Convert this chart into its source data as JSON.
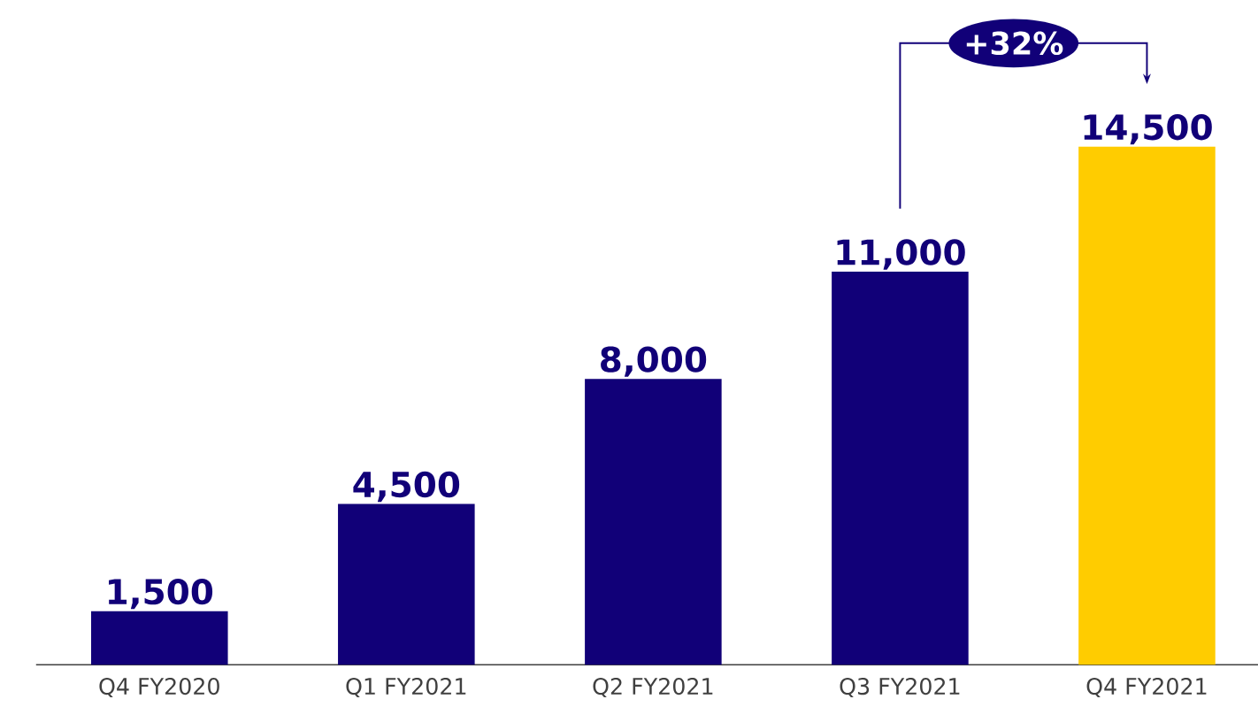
{
  "chart_data": {
    "type": "bar",
    "categories": [
      "Q4 FY2020",
      "Q1 FY2021",
      "Q2 FY2021",
      "Q3 FY2021",
      "Q4 FY2021"
    ],
    "values": [
      1500,
      4500,
      8000,
      11000,
      14500
    ],
    "value_labels": [
      "1,500",
      "4,500",
      "8,000",
      "11,000",
      "14,500"
    ],
    "colors": [
      "#110078",
      "#110078",
      "#110078",
      "#110078",
      "#ffcc00"
    ],
    "annotations": [
      "+32%"
    ]
  }
}
